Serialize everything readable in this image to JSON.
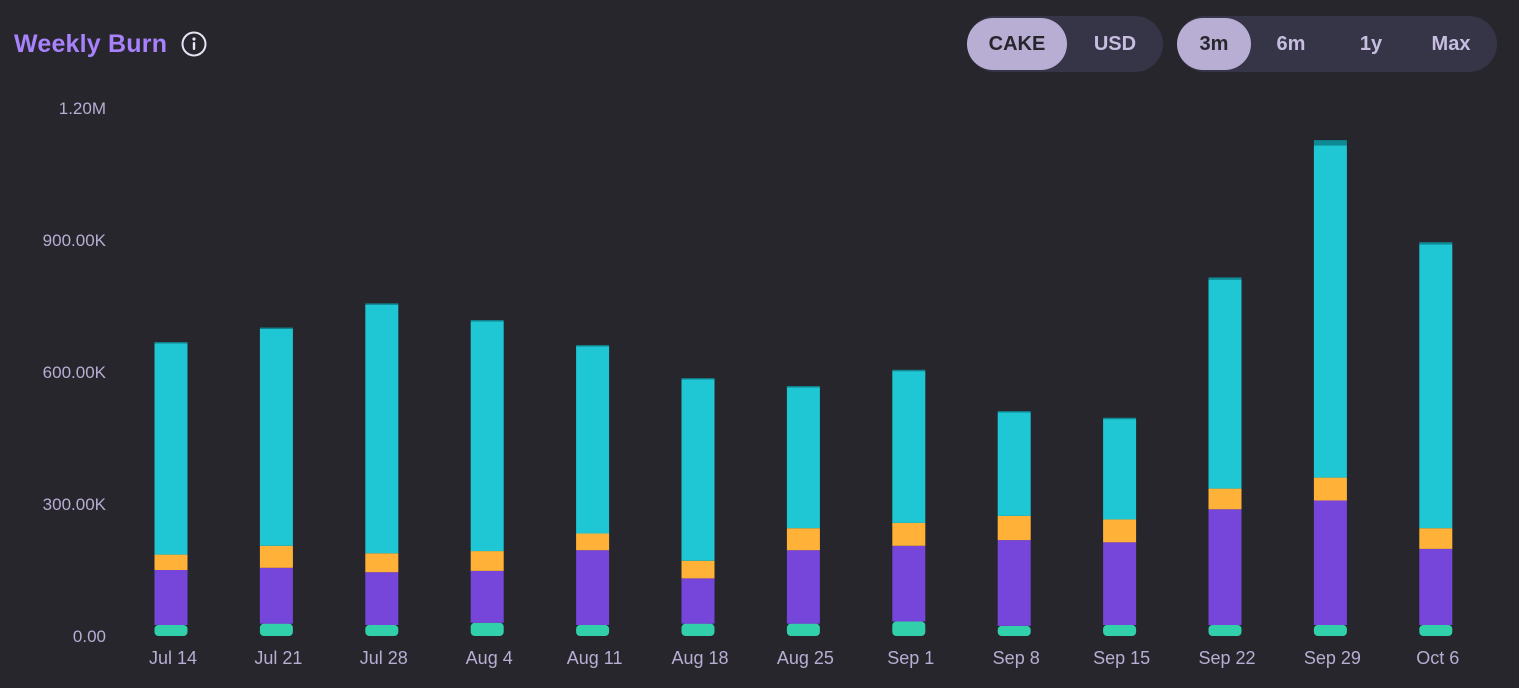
{
  "header": {
    "title": "Weekly Burn",
    "info_icon": "info-circle-icon"
  },
  "unit_toggle": {
    "options": [
      "CAKE",
      "USD"
    ],
    "selected": "CAKE"
  },
  "range_toggle": {
    "options": [
      "3m",
      "6m",
      "1y",
      "Max"
    ],
    "selected": "3m"
  },
  "colors": {
    "background": "#27262c",
    "title": "#a881fc",
    "tick_text": "#b8add2",
    "toggle_bg": "#353547",
    "toggle_active": "#b8add2",
    "series_green": "#31d0aa",
    "series_purple": "#7645d9",
    "series_orange": "#ffb237",
    "series_teal": "#1fc7d4",
    "series_cap": "#0e8a95"
  },
  "chart_data": {
    "type": "bar",
    "stacked": true,
    "categories": [
      "Jul 14",
      "Jul 21",
      "Jul 28",
      "Aug 4",
      "Aug 11",
      "Aug 18",
      "Aug 25",
      "Sep 1",
      "Sep 8",
      "Sep 15",
      "Sep 22",
      "Sep 29",
      "Oct 6"
    ],
    "y_ticks": [
      "0.00",
      "300.00K",
      "600.00K",
      "900.00K",
      "1.20M"
    ],
    "ylim": [
      0,
      1200000
    ],
    "series": [
      {
        "color": "#31d0aa",
        "values": [
          25000,
          28000,
          25000,
          30000,
          25000,
          28000,
          28000,
          33000,
          23000,
          25000,
          25000,
          25000,
          25000
        ]
      },
      {
        "color": "#7645d9",
        "values": [
          125000,
          127000,
          120000,
          118000,
          170000,
          103000,
          167000,
          172000,
          195000,
          188000,
          263000,
          283000,
          173000
        ]
      },
      {
        "color": "#ffb237",
        "values": [
          35000,
          50000,
          43000,
          45000,
          38000,
          40000,
          50000,
          52000,
          55000,
          52000,
          47000,
          52000,
          47000
        ]
      },
      {
        "color": "#1fc7d4",
        "values": [
          480000,
          493000,
          565000,
          522000,
          425000,
          412000,
          320000,
          345000,
          235000,
          228000,
          475000,
          755000,
          645000
        ]
      },
      {
        "color": "#0e8a95",
        "values": [
          3000,
          3000,
          3000,
          3000,
          3000,
          3000,
          3000,
          3000,
          3000,
          3000,
          5000,
          12000,
          5000
        ]
      }
    ],
    "grid": false,
    "legend": "none"
  }
}
